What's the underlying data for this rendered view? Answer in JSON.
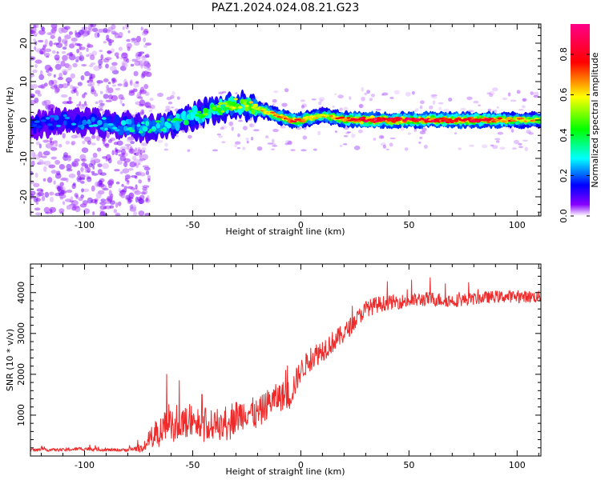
{
  "title": "PAZ1.2024.024.08.21.G23",
  "colors": {
    "snr_line": "#ee2a2a",
    "axes": "#000000"
  },
  "chart_data": [
    {
      "type": "heatmap",
      "xlabel": "Height of straight line (km)",
      "ylabel": "Frequency (Hz)",
      "xlim": [
        -125,
        111
      ],
      "ylim": [
        -25,
        25
      ],
      "xticks": [
        -100,
        -50,
        0,
        50,
        100
      ],
      "yticks": [
        -20,
        -10,
        0,
        10,
        20
      ],
      "colorbar": {
        "label": "Normalized spectral amplitude",
        "ticks": [
          "0.0",
          "0.2",
          "0.4",
          "0.6",
          "0.8"
        ],
        "range": [
          0,
          0.95
        ],
        "colormap": [
          "#ffffff",
          "#8800ff",
          "#0000ff",
          "#00ffff",
          "#00ff00",
          "#ffff00",
          "#ff0000",
          "#ff0088"
        ]
      },
      "ridge": [
        {
          "x": -125,
          "f": -1.5,
          "a": 0.2
        },
        {
          "x": -110,
          "f": 0.0,
          "a": 0.25
        },
        {
          "x": -90,
          "f": -1.0,
          "a": 0.3
        },
        {
          "x": -70,
          "f": -2.0,
          "a": 0.35
        },
        {
          "x": -60,
          "f": -1.0,
          "a": 0.4
        },
        {
          "x": -50,
          "f": 1.0,
          "a": 0.45
        },
        {
          "x": -40,
          "f": 2.5,
          "a": 0.5
        },
        {
          "x": -30,
          "f": 4.0,
          "a": 0.55
        },
        {
          "x": -20,
          "f": 3.0,
          "a": 0.6
        },
        {
          "x": -10,
          "f": 1.0,
          "a": 0.7
        },
        {
          "x": -5,
          "f": 0.0,
          "a": 0.8
        },
        {
          "x": 0,
          "f": 0.0,
          "a": 0.75
        },
        {
          "x": 10,
          "f": 1.2,
          "a": 0.6
        },
        {
          "x": 20,
          "f": 0.2,
          "a": 0.75
        },
        {
          "x": 30,
          "f": 0.0,
          "a": 0.9
        },
        {
          "x": 50,
          "f": 0.0,
          "a": 0.85
        },
        {
          "x": 70,
          "f": 0.0,
          "a": 0.9
        },
        {
          "x": 90,
          "f": 0.0,
          "a": 0.8
        },
        {
          "x": 100,
          "f": 0.0,
          "a": 0.7
        },
        {
          "x": 111,
          "f": 0.0,
          "a": 0.6
        }
      ]
    },
    {
      "type": "line",
      "xlabel": "Height of straight line (km)",
      "ylabel": "SNR (10 * v/v)",
      "xlim": [
        -125,
        111
      ],
      "ylim": [
        0,
        4700
      ],
      "xticks": [
        -100,
        -50,
        0,
        50,
        100
      ],
      "yticks": [
        1000,
        2000,
        3000,
        4000
      ],
      "series": [
        {
          "x": [
            -125,
            -110,
            -100,
            -90,
            -80,
            -75,
            -70,
            -65,
            -60,
            -55,
            -50,
            -45,
            -40,
            -35,
            -30,
            -25,
            -20,
            -15,
            -10,
            -5,
            0,
            5,
            10,
            15,
            20,
            25,
            30,
            35,
            40,
            50,
            60,
            70,
            80,
            90,
            100,
            111
          ],
          "y": [
            150,
            150,
            180,
            150,
            150,
            200,
            400,
            700,
            900,
            800,
            900,
            850,
            750,
            900,
            950,
            1100,
            1000,
            1300,
            1450,
            1500,
            2100,
            2400,
            2600,
            2800,
            3000,
            3300,
            3600,
            3700,
            3750,
            3800,
            3850,
            3800,
            3850,
            3900,
            3900,
            3900
          ],
          "noise_amplitude": [
            60,
            60,
            80,
            60,
            60,
            150,
            400,
            600,
            700,
            700,
            700,
            650,
            600,
            700,
            700,
            650,
            650,
            600,
            600,
            650,
            450,
            500,
            500,
            450,
            400,
            350,
            350,
            350,
            300,
            300,
            300,
            280,
            250,
            250,
            250,
            250
          ]
        }
      ]
    }
  ]
}
